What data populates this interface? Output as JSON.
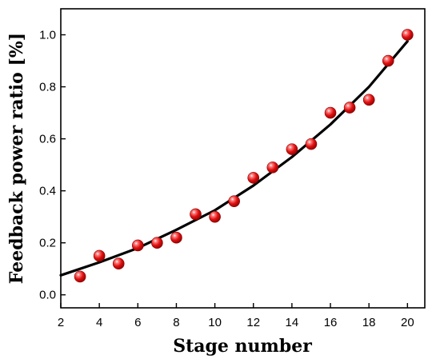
{
  "chart_data": {
    "type": "scatter",
    "xlabel": "Stage number",
    "ylabel": "Feedback power ratio [%]",
    "xlim": [
      2,
      20.9
    ],
    "ylim": [
      -0.05,
      1.1
    ],
    "x_ticks": [
      2,
      4,
      6,
      8,
      10,
      12,
      14,
      16,
      18,
      20
    ],
    "y_ticks": [
      0.0,
      0.2,
      0.4,
      0.6,
      0.8,
      1.0
    ],
    "y_tick_labels": [
      "0.0",
      "0.2",
      "0.4",
      "0.6",
      "0.8",
      "1.0"
    ],
    "grid": false,
    "series": [
      {
        "type": "scatter",
        "color": "#e01010",
        "marker": "sphere",
        "x": [
          3,
          4,
          5,
          6,
          7,
          8,
          9,
          10,
          11,
          12,
          13,
          14,
          15,
          16,
          17,
          18,
          19,
          20
        ],
        "y": [
          0.07,
          0.15,
          0.12,
          0.19,
          0.2,
          0.22,
          0.31,
          0.3,
          0.36,
          0.45,
          0.49,
          0.56,
          0.58,
          0.7,
          0.72,
          0.75,
          0.9,
          1.0
        ]
      },
      {
        "type": "line",
        "color": "#000000",
        "fit": "quadratic",
        "x": [
          2,
          4,
          6,
          8,
          10,
          12,
          14,
          16,
          18,
          20
        ],
        "y": [
          0.075,
          0.125,
          0.18,
          0.25,
          0.325,
          0.42,
          0.53,
          0.655,
          0.8,
          0.975
        ]
      }
    ]
  }
}
